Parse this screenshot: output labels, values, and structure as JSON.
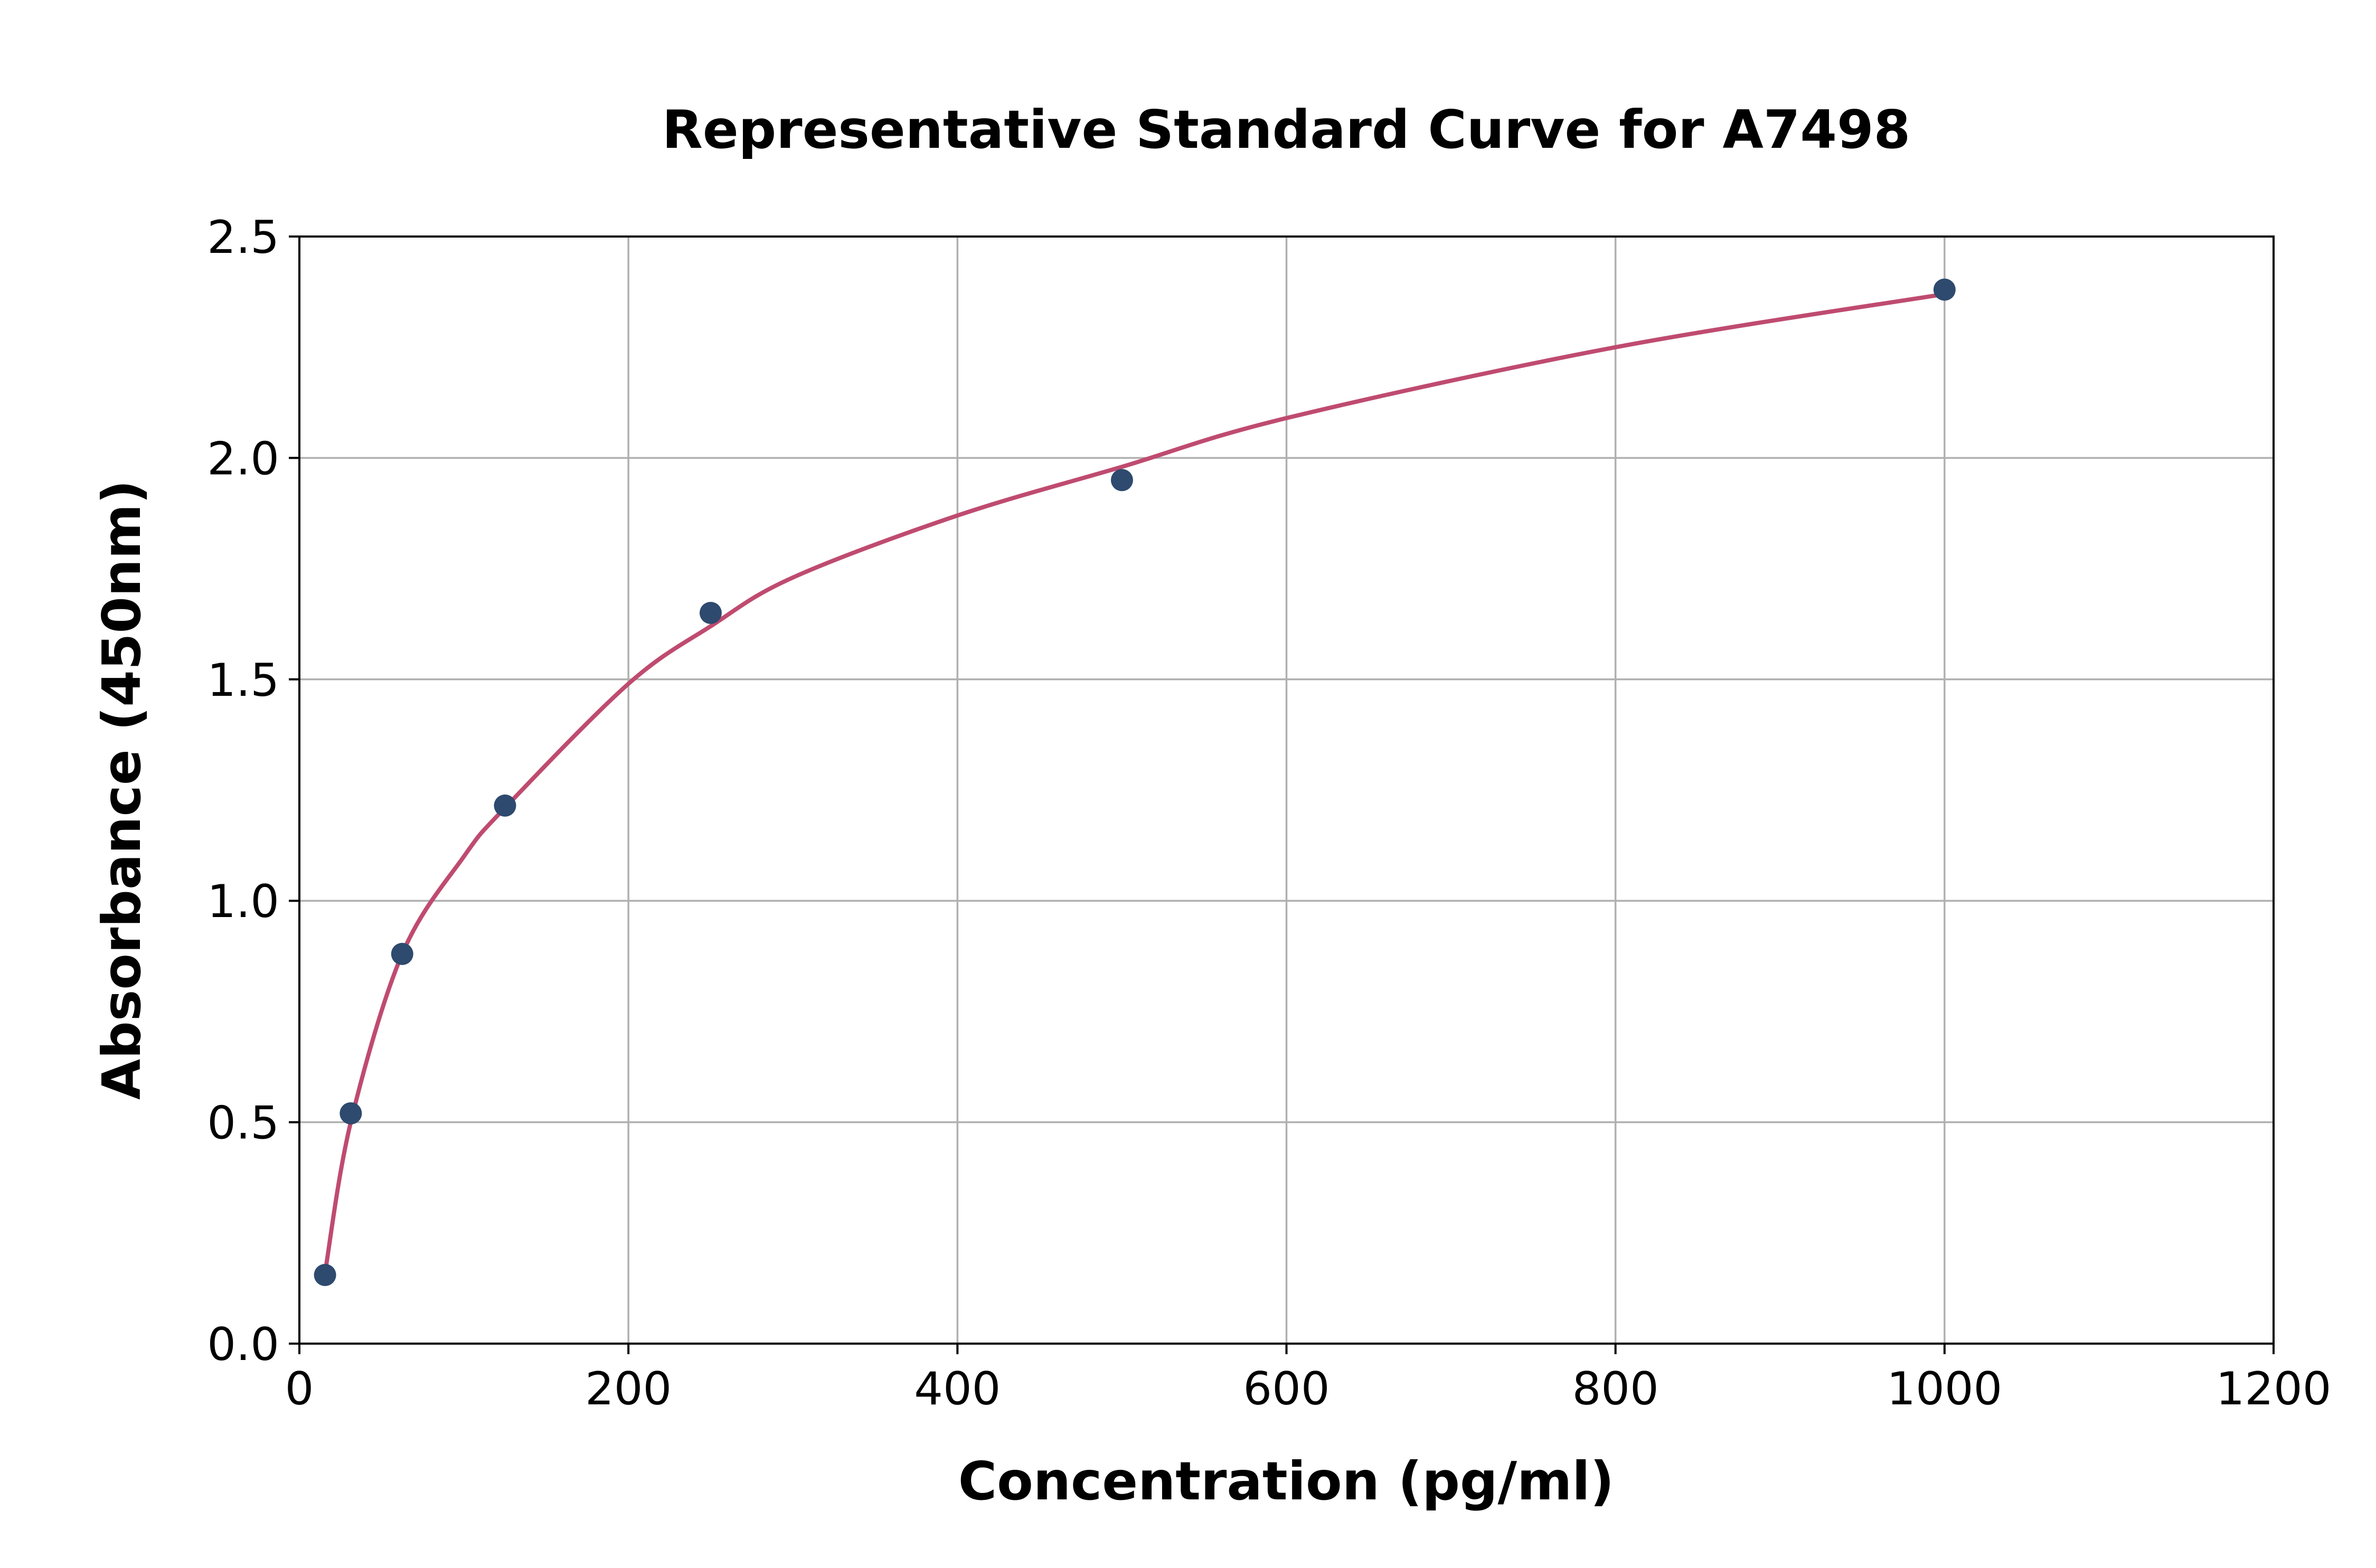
{
  "chart_data": {
    "type": "scatter",
    "title": "Representative Standard Curve for A7498",
    "xlabel": "Concentration (pg/ml)",
    "ylabel": "Absorbance (450nm)",
    "xlim": [
      0,
      1200
    ],
    "ylim": [
      0,
      2.5
    ],
    "xticks": [
      "0",
      "200",
      "400",
      "600",
      "800",
      "1000",
      "1200"
    ],
    "yticks": [
      "0.0",
      "0.5",
      "1.0",
      "1.5",
      "2.0",
      "2.5"
    ],
    "grid": true,
    "points": {
      "x": [
        15.6,
        31.25,
        62.5,
        125,
        250,
        500,
        1000
      ],
      "y": [
        0.155,
        0.52,
        0.88,
        1.215,
        1.65,
        1.95,
        2.38
      ],
      "color": "#2e4a6e"
    },
    "fit_curve": {
      "x": [
        15.6,
        31.25,
        62.5,
        100,
        125,
        200,
        250,
        300,
        400,
        500,
        600,
        800,
        1000
      ],
      "y": [
        0.16,
        0.5,
        0.88,
        1.1,
        1.21,
        1.49,
        1.62,
        1.73,
        1.87,
        1.98,
        2.09,
        2.25,
        2.37
      ],
      "color": "#bf4b70"
    }
  }
}
